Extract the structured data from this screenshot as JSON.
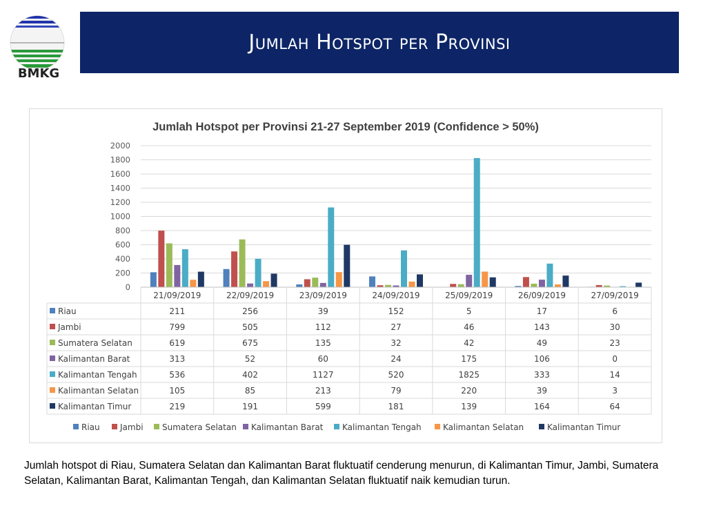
{
  "header": {
    "logo_text": "BMKG",
    "title": "Jumlah Hotspot per Provinsi"
  },
  "chart_data": {
    "type": "bar",
    "title": "Jumlah Hotspot per Provinsi 21-27 September 2019 (Confidence > 50%)",
    "categories": [
      "21/09/2019",
      "22/09/2019",
      "23/09/2019",
      "24/09/2019",
      "25/09/2019",
      "26/09/2019",
      "27/09/2019"
    ],
    "ylim": [
      0,
      2000
    ],
    "yticks": [
      0,
      200,
      400,
      600,
      800,
      1000,
      1200,
      1400,
      1600,
      1800,
      2000
    ],
    "grid": true,
    "legend": "bottom",
    "data_table": true,
    "series": [
      {
        "name": "Riau",
        "color": "#4f81bd",
        "values": [
          211,
          256,
          39,
          152,
          5,
          17,
          6
        ]
      },
      {
        "name": "Jambi",
        "color": "#c0504d",
        "values": [
          799,
          505,
          112,
          27,
          46,
          143,
          30
        ]
      },
      {
        "name": "Sumatera Selatan",
        "color": "#9bbb59",
        "values": [
          619,
          675,
          135,
          32,
          42,
          49,
          23
        ]
      },
      {
        "name": "Kalimantan Barat",
        "color": "#8064a2",
        "values": [
          313,
          52,
          60,
          24,
          175,
          106,
          0
        ]
      },
      {
        "name": "Kalimantan Tengah",
        "color": "#4bacc6",
        "values": [
          536,
          402,
          1127,
          520,
          1825,
          333,
          14
        ]
      },
      {
        "name": "Kalimantan Selatan",
        "color": "#f79646",
        "values": [
          105,
          85,
          213,
          79,
          220,
          39,
          3
        ]
      },
      {
        "name": "Kalimantan Timur",
        "color": "#1f3864",
        "values": [
          219,
          191,
          599,
          181,
          139,
          164,
          64
        ]
      }
    ]
  },
  "caption": "Jumlah hotspot di Riau, Sumatera Selatan dan Kalimantan Barat fluktuatif cenderung menurun, di Kalimantan Timur, Jambi, Sumatera Selatan, Kalimantan Barat, Kalimantan Tengah, dan Kalimantan Selatan fluktuatif naik kemudian turun."
}
